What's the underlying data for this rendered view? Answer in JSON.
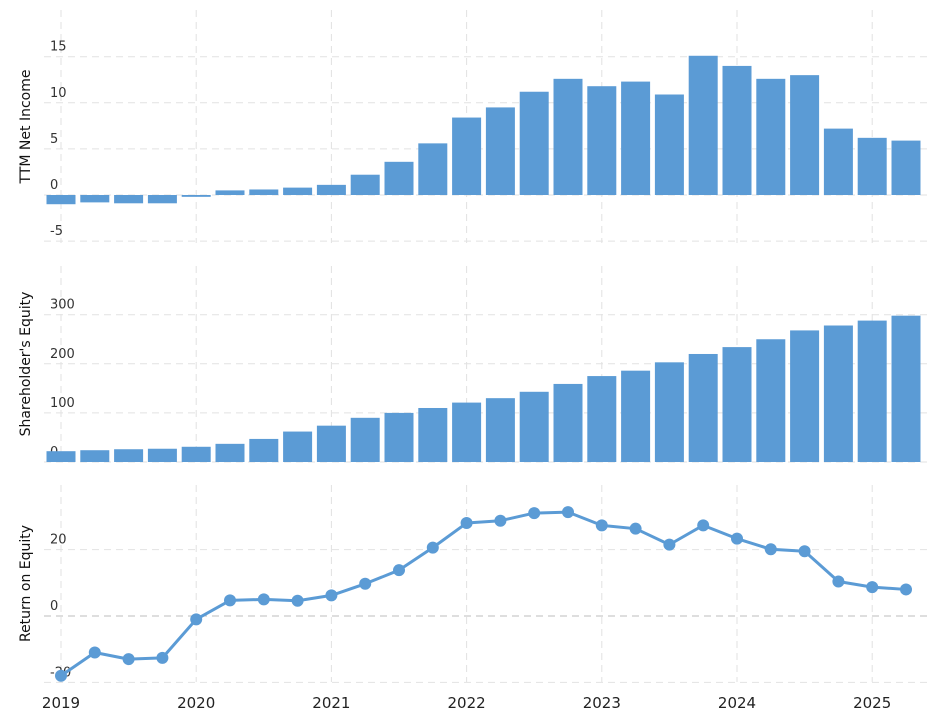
{
  "chart_data": [
    {
      "type": "bar",
      "ylabel": "TTM Net Income",
      "ylim": [
        -6,
        19
      ],
      "yticks": [
        -5,
        0,
        5,
        10,
        15
      ],
      "color": "#5b9bd5",
      "x": [
        2019.0,
        2019.25,
        2019.5,
        2019.75,
        2020.0,
        2020.25,
        2020.5,
        2020.75,
        2021.0,
        2021.25,
        2021.5,
        2021.75,
        2022.0,
        2022.25,
        2022.5,
        2022.75,
        2023.0,
        2023.25,
        2023.5,
        2023.75,
        2024.0,
        2024.25,
        2024.5,
        2024.75,
        2025.0,
        2025.25
      ],
      "values": [
        -1.0,
        -0.8,
        -0.9,
        -0.9,
        -0.2,
        0.5,
        0.6,
        0.8,
        1.1,
        2.2,
        3.6,
        5.6,
        8.4,
        9.5,
        11.2,
        12.6,
        11.8,
        12.3,
        10.9,
        15.1,
        14.0,
        12.6,
        13.0,
        7.2,
        6.2,
        5.9
      ]
    },
    {
      "type": "bar",
      "ylabel": "Shareholder's Equity",
      "ylim": [
        0,
        400
      ],
      "yticks": [
        0,
        100,
        200,
        300
      ],
      "color": "#5b9bd5",
      "x": [
        2019.0,
        2019.25,
        2019.5,
        2019.75,
        2020.0,
        2020.25,
        2020.5,
        2020.75,
        2021.0,
        2021.25,
        2021.5,
        2021.75,
        2022.0,
        2022.25,
        2022.5,
        2022.75,
        2023.0,
        2023.25,
        2023.5,
        2023.75,
        2024.0,
        2024.25,
        2024.5,
        2024.75,
        2025.0,
        2025.25
      ],
      "values": [
        22,
        24,
        26,
        27,
        31,
        37,
        47,
        62,
        74,
        90,
        100,
        110,
        121,
        130,
        143,
        159,
        175,
        186,
        203,
        220,
        234,
        250,
        268,
        278,
        288,
        298
      ]
    },
    {
      "type": "line",
      "ylabel": "Return on Equity",
      "ylim": [
        -20,
        40
      ],
      "yticks": [
        -20,
        0,
        20
      ],
      "color": "#5b9bd5",
      "x": [
        2019.0,
        2019.25,
        2019.5,
        2019.75,
        2020.0,
        2020.25,
        2020.5,
        2020.75,
        2021.0,
        2021.25,
        2021.5,
        2021.75,
        2022.0,
        2022.25,
        2022.5,
        2022.75,
        2023.0,
        2023.25,
        2023.5,
        2023.75,
        2024.0,
        2024.25,
        2024.5,
        2024.75,
        2025.0,
        2025.25
      ],
      "values": [
        -18.0,
        -11.0,
        -13.0,
        -12.6,
        -1.0,
        4.7,
        5.0,
        4.6,
        6.2,
        9.7,
        13.8,
        20.6,
        28.0,
        28.7,
        31.0,
        31.3,
        27.3,
        26.3,
        21.5,
        27.3,
        23.3,
        20.1,
        19.5,
        10.4,
        8.7,
        8.0
      ]
    }
  ],
  "x_axis": {
    "ticks": [
      2019,
      2020,
      2021,
      2022,
      2023,
      2024,
      2025
    ],
    "tick_labels": [
      "2019",
      "2020",
      "2021",
      "2022",
      "2023",
      "2024",
      "2025"
    ]
  }
}
